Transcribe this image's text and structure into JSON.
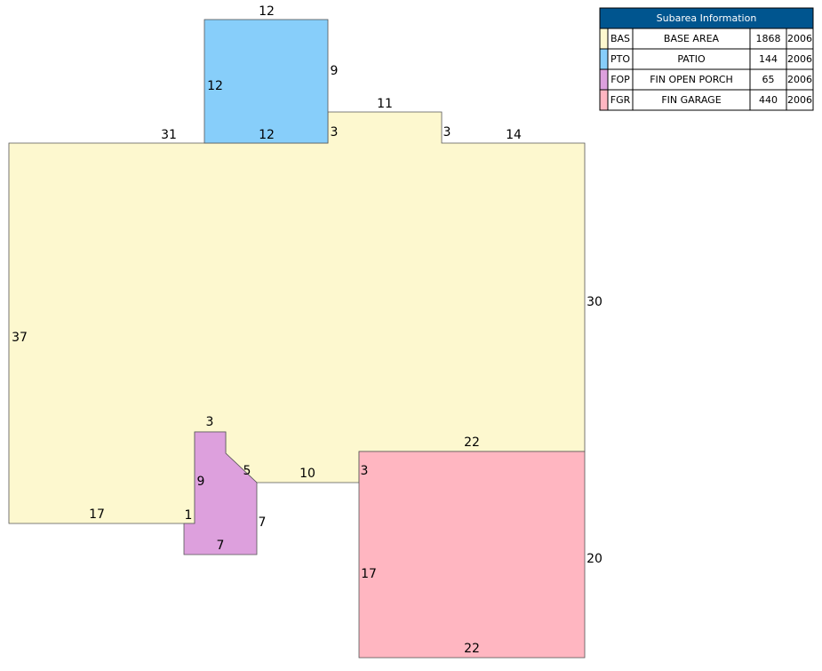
{
  "dimensions": [
    12,
    9,
    12,
    12,
    31,
    11,
    3,
    3,
    14,
    30,
    37,
    3,
    22,
    5,
    10,
    3,
    9,
    17,
    1,
    7,
    7,
    17,
    20,
    22
  ],
  "table": {
    "title": "Subarea Information",
    "rows": [
      [
        "BAS",
        "BASE AREA",
        1868,
        2006
      ],
      [
        "PTO",
        "PATIO",
        144,
        2006
      ],
      [
        "FOP",
        "FIN OPEN PORCH",
        65,
        2006
      ],
      [
        "FGR",
        "FIN GARAGE",
        440,
        2006
      ]
    ]
  }
}
